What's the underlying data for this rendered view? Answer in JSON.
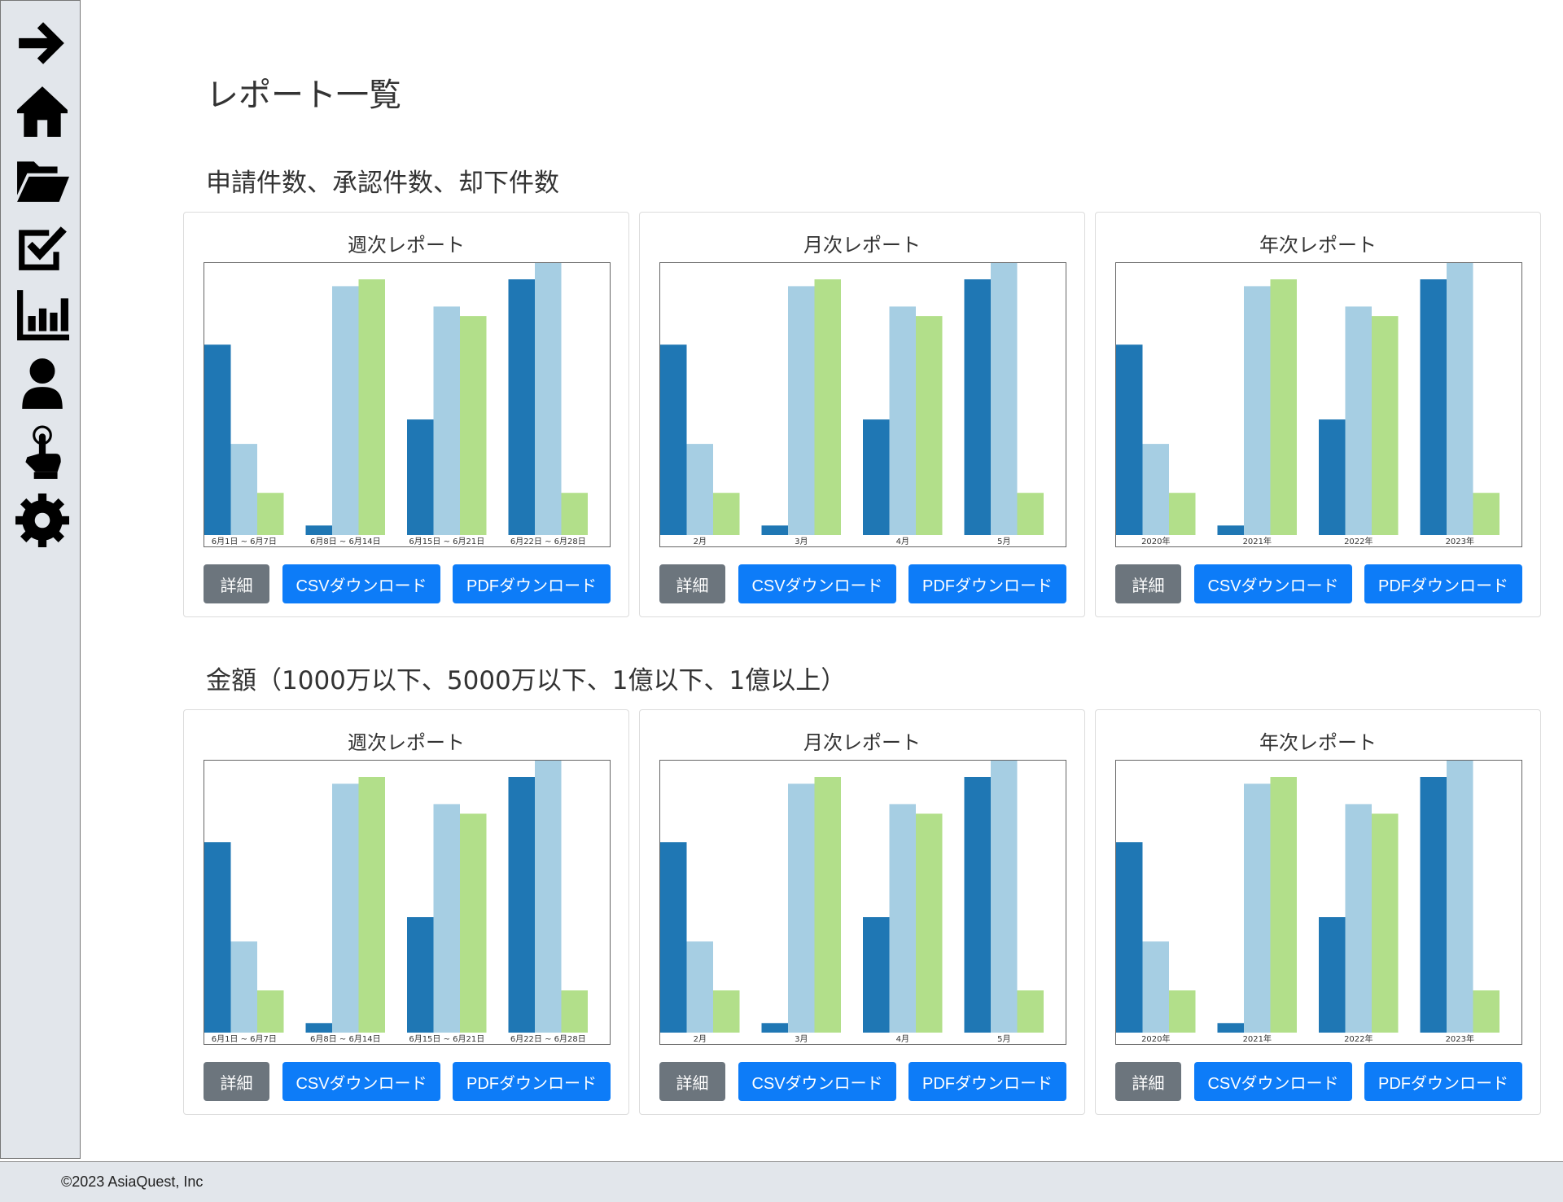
{
  "sidebar": {
    "items": [
      {
        "icon": "arrow-right-icon"
      },
      {
        "icon": "home-icon"
      },
      {
        "icon": "folder-open-icon"
      },
      {
        "icon": "checkbox-icon"
      },
      {
        "icon": "bar-chart-icon"
      },
      {
        "icon": "user-icon"
      },
      {
        "icon": "hand-pointer-icon"
      },
      {
        "icon": "gear-icon"
      }
    ]
  },
  "page": {
    "title": "レポート一覧"
  },
  "sections": [
    {
      "title": "申請件数、承認件数、却下件数",
      "cards": [
        {
          "title": "週次レポート",
          "detail_label": "詳細",
          "csv_label": "CSVダウンロード",
          "pdf_label": "PDFダウンロード"
        },
        {
          "title": "月次レポート",
          "detail_label": "詳細",
          "csv_label": "CSVダウンロード",
          "pdf_label": "PDFダウンロード"
        },
        {
          "title": "年次レポート",
          "detail_label": "詳細",
          "csv_label": "CSVダウンロード",
          "pdf_label": "PDFダウンロード"
        }
      ]
    },
    {
      "title": "金額（1000万以下、5000万以下、1億以下、1億以上）",
      "cards": [
        {
          "title": "週次レポート",
          "detail_label": "詳細",
          "csv_label": "CSVダウンロード",
          "pdf_label": "PDFダウンロード"
        },
        {
          "title": "月次レポート",
          "detail_label": "詳細",
          "csv_label": "CSVダウンロード",
          "pdf_label": "PDFダウンロード"
        },
        {
          "title": "年次レポート",
          "detail_label": "詳細",
          "csv_label": "CSVダウンロード",
          "pdf_label": "PDFダウンロード"
        }
      ]
    }
  ],
  "colors": {
    "series1": "#1f77b4",
    "series2": "#a6cee3",
    "series3": "#b2df8a",
    "button_secondary": "#6c757d",
    "button_primary": "#0d7cf8"
  },
  "chart_data": [
    {
      "type": "bar",
      "categories": [
        "6月1日 ~ 6月7日",
        "6月8日 ~ 6月14日",
        "6月15日 ~ 6月21日",
        "6月22日 ~ 6月28日"
      ],
      "series": [
        {
          "values": [
            14,
            0.7,
            8.5,
            18.8
          ]
        },
        {
          "values": [
            6.7,
            18.3,
            16.8,
            20
          ]
        },
        {
          "values": [
            3.1,
            18.8,
            16.1,
            3.1
          ]
        }
      ],
      "ylim": [
        0,
        20
      ]
    },
    {
      "type": "bar",
      "categories": [
        "2月",
        "3月",
        "4月",
        "5月"
      ],
      "series": [
        {
          "values": [
            14,
            0.7,
            8.5,
            18.8
          ]
        },
        {
          "values": [
            6.7,
            18.3,
            16.8,
            20
          ]
        },
        {
          "values": [
            3.1,
            18.8,
            16.1,
            3.1
          ]
        }
      ],
      "ylim": [
        0,
        20
      ]
    },
    {
      "type": "bar",
      "categories": [
        "2020年",
        "2021年",
        "2022年",
        "2023年"
      ],
      "series": [
        {
          "values": [
            14,
            0.7,
            8.5,
            18.8
          ]
        },
        {
          "values": [
            6.7,
            18.3,
            16.8,
            20
          ]
        },
        {
          "values": [
            3.1,
            18.8,
            16.1,
            3.1
          ]
        }
      ],
      "ylim": [
        0,
        20
      ]
    },
    {
      "type": "bar",
      "categories": [
        "6月1日 ~ 6月7日",
        "6月8日 ~ 6月14日",
        "6月15日 ~ 6月21日",
        "6月22日 ~ 6月28日"
      ],
      "series": [
        {
          "values": [
            14,
            0.7,
            8.5,
            18.8
          ]
        },
        {
          "values": [
            6.7,
            18.3,
            16.8,
            20
          ]
        },
        {
          "values": [
            3.1,
            18.8,
            16.1,
            3.1
          ]
        }
      ],
      "ylim": [
        0,
        20
      ]
    },
    {
      "type": "bar",
      "categories": [
        "2月",
        "3月",
        "4月",
        "5月"
      ],
      "series": [
        {
          "values": [
            14,
            0.7,
            8.5,
            18.8
          ]
        },
        {
          "values": [
            6.7,
            18.3,
            16.8,
            20
          ]
        },
        {
          "values": [
            3.1,
            18.8,
            16.1,
            3.1
          ]
        }
      ],
      "ylim": [
        0,
        20
      ]
    },
    {
      "type": "bar",
      "categories": [
        "2020年",
        "2021年",
        "2022年",
        "2023年"
      ],
      "series": [
        {
          "values": [
            14,
            0.7,
            8.5,
            18.8
          ]
        },
        {
          "values": [
            6.7,
            18.3,
            16.8,
            20
          ]
        },
        {
          "values": [
            3.1,
            18.8,
            16.1,
            3.1
          ]
        }
      ],
      "ylim": [
        0,
        20
      ]
    }
  ],
  "footer": {
    "copyright": "©2023 AsiaQuest, Inc"
  }
}
